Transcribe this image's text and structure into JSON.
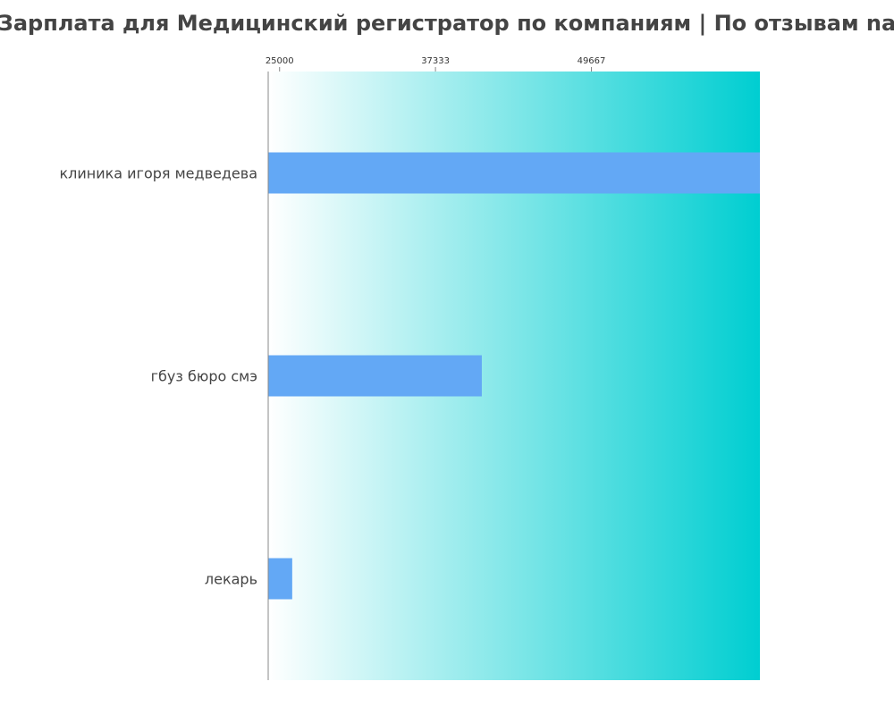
{
  "chart_data": {
    "type": "bar",
    "orientation": "horizontal",
    "title": "Зарплата для Медицинский регистратор по компаниям  | По отзывам na",
    "xlabel": "",
    "ylabel": "",
    "categories": [
      "клиника игоря медведева",
      "гбуз бюро смэ",
      "лекарь"
    ],
    "values": [
      63000,
      41000,
      26000
    ],
    "xlim": [
      24100,
      63000
    ],
    "x_ticks": [
      25000,
      37333,
      49667
    ],
    "tick_labels": [
      "25000",
      "37333",
      "49667"
    ],
    "axis_position": "top",
    "grid": false,
    "legend": "none",
    "colors": {
      "bar": "#63a8f5",
      "background_gradient_start": "#ffffff",
      "background_gradient_end": "#00ced1",
      "axis": "#888888",
      "text": "#444444"
    }
  }
}
